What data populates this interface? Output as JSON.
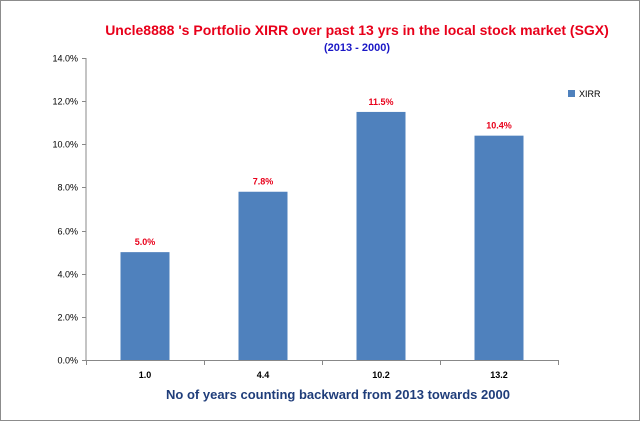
{
  "chart_data": {
    "type": "bar",
    "title": "Uncle8888 's Portfolio XIRR over past 13 yrs in the local stock market (SGX)",
    "subtitle": "(2013 - 2000)",
    "xlabel": "No of years counting backward from 2013 towards 2000",
    "ylabel": "",
    "categories": [
      "1.0",
      "4.4",
      "10.2",
      "13.2"
    ],
    "series": [
      {
        "name": "XIRR",
        "values": [
          5.0,
          7.8,
          11.5,
          10.4
        ],
        "color": "#4f81bd"
      }
    ],
    "data_labels": [
      "5.0%",
      "7.8%",
      "11.5%",
      "10.4%"
    ],
    "ylim": [
      0,
      14
    ],
    "yticks": [
      0,
      2,
      4,
      6,
      8,
      10,
      12,
      14
    ],
    "ytick_labels": [
      "0.0%",
      "2.0%",
      "4.0%",
      "6.0%",
      "8.0%",
      "10.0%",
      "12.0%",
      "14.0%"
    ],
    "grid": false,
    "legend": "right"
  }
}
